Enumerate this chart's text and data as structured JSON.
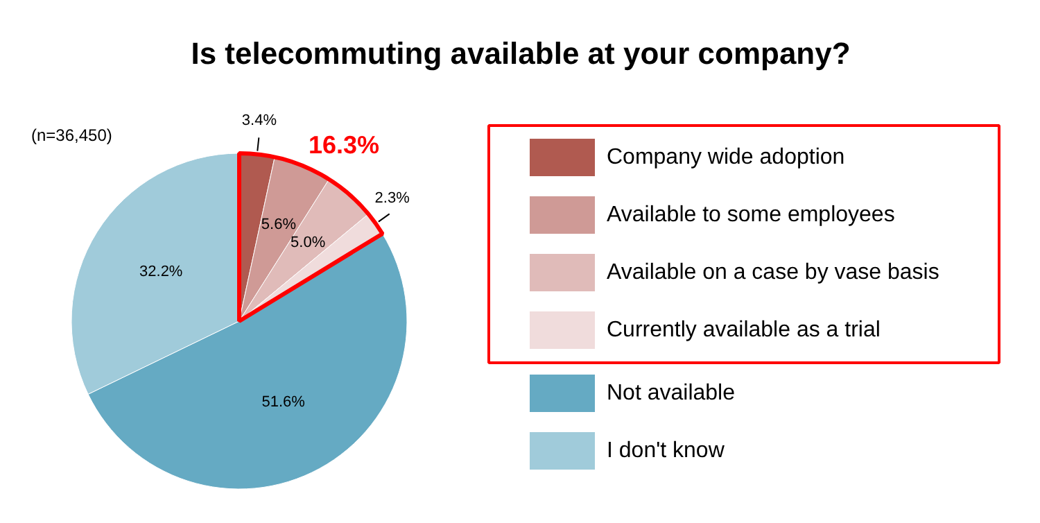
{
  "chart_data": {
    "type": "pie",
    "title": "Is telecommuting available at your company?",
    "categories": [
      "Company wide adoption",
      "Available to some employees",
      "Available on a case by vase basis",
      "Currently available as a trial",
      "Not available",
      "I don't know"
    ],
    "values": [
      3.4,
      5.6,
      5.0,
      2.3,
      51.6,
      32.2
    ],
    "colors": [
      "#b05a50",
      "#cf9a96",
      "#e0bbb9",
      "#f0dcdc",
      "#65aac3",
      "#a0cbda"
    ],
    "annotations": [
      "(n=36,450)",
      "16.3%"
    ],
    "value_labels": [
      "3.4%",
      "5.6%",
      "5.0%",
      "2.3%",
      "51.6%",
      "32.2%"
    ],
    "legend": "right"
  }
}
